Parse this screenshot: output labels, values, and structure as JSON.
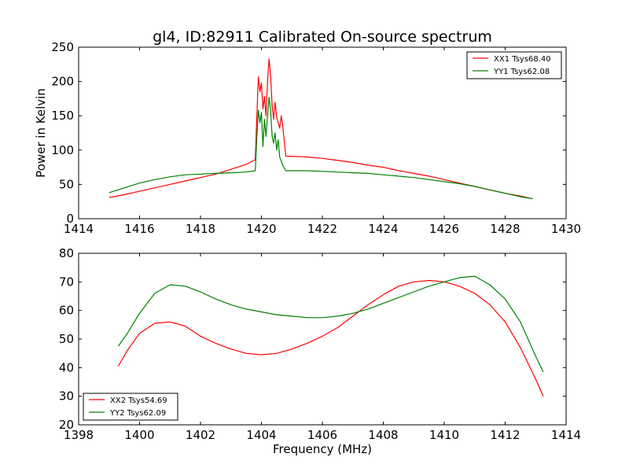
{
  "title": "gl4, ID:82911 Calibrated On-source spectrum",
  "chart_data": [
    {
      "type": "line",
      "ylabel": "Power in Kelvin",
      "xlim": [
        1414,
        1430
      ],
      "ylim": [
        0,
        250
      ],
      "xticks": [
        "1414",
        "1416",
        "1418",
        "1420",
        "1422",
        "1424",
        "1426",
        "1428",
        "1430"
      ],
      "yticks": [
        "0",
        "50",
        "100",
        "150",
        "200",
        "250"
      ],
      "legend_position": "upper-right",
      "series": [
        {
          "name": "XX1 Tsys68.40",
          "color": "#ff0000",
          "points": [
            [
              1415.0,
              31
            ],
            [
              1415.5,
              35
            ],
            [
              1416.0,
              40
            ],
            [
              1416.5,
              45
            ],
            [
              1417.0,
              50
            ],
            [
              1417.5,
              55
            ],
            [
              1418.0,
              60
            ],
            [
              1418.5,
              65
            ],
            [
              1419.0,
              72
            ],
            [
              1419.5,
              79
            ],
            [
              1419.8,
              86
            ],
            [
              1419.85,
              150
            ],
            [
              1419.9,
              207
            ],
            [
              1419.95,
              185
            ],
            [
              1420.0,
              198
            ],
            [
              1420.05,
              160
            ],
            [
              1420.1,
              178
            ],
            [
              1420.15,
              150
            ],
            [
              1420.2,
              200
            ],
            [
              1420.25,
              233
            ],
            [
              1420.3,
              210
            ],
            [
              1420.35,
              165
            ],
            [
              1420.4,
              145
            ],
            [
              1420.45,
              170
            ],
            [
              1420.5,
              148
            ],
            [
              1420.55,
              140
            ],
            [
              1420.6,
              132
            ],
            [
              1420.65,
              150
            ],
            [
              1420.7,
              135
            ],
            [
              1420.8,
              91
            ],
            [
              1421.0,
              91
            ],
            [
              1421.5,
              90
            ],
            [
              1422.0,
              88
            ],
            [
              1422.5,
              85
            ],
            [
              1423.0,
              82
            ],
            [
              1423.5,
              78
            ],
            [
              1424.0,
              75
            ],
            [
              1424.5,
              70
            ],
            [
              1425.0,
              66
            ],
            [
              1425.5,
              62
            ],
            [
              1426.0,
              57
            ],
            [
              1426.5,
              52
            ],
            [
              1427.0,
              47
            ],
            [
              1427.5,
              42
            ],
            [
              1428.0,
              37
            ],
            [
              1428.5,
              33
            ],
            [
              1428.9,
              29
            ]
          ]
        },
        {
          "name": "YY1 Tsys62.08",
          "color": "#008000",
          "points": [
            [
              1415.0,
              38
            ],
            [
              1415.5,
              45
            ],
            [
              1416.0,
              52
            ],
            [
              1416.5,
              57
            ],
            [
              1417.0,
              61
            ],
            [
              1417.5,
              64
            ],
            [
              1418.0,
              65
            ],
            [
              1418.5,
              66
            ],
            [
              1419.0,
              67
            ],
            [
              1419.5,
              68
            ],
            [
              1419.8,
              70
            ],
            [
              1419.85,
              120
            ],
            [
              1419.9,
              158
            ],
            [
              1419.95,
              140
            ],
            [
              1420.0,
              155
            ],
            [
              1420.05,
              105
            ],
            [
              1420.1,
              145
            ],
            [
              1420.15,
              120
            ],
            [
              1420.2,
              150
            ],
            [
              1420.25,
              177
            ],
            [
              1420.3,
              160
            ],
            [
              1420.35,
              120
            ],
            [
              1420.4,
              110
            ],
            [
              1420.45,
              125
            ],
            [
              1420.5,
              100
            ],
            [
              1420.55,
              115
            ],
            [
              1420.6,
              90
            ],
            [
              1420.7,
              78
            ],
            [
              1420.8,
              70
            ],
            [
              1421.0,
              70
            ],
            [
              1421.5,
              70
            ],
            [
              1422.0,
              69
            ],
            [
              1422.5,
              68
            ],
            [
              1423.0,
              67
            ],
            [
              1423.5,
              66
            ],
            [
              1424.0,
              64
            ],
            [
              1424.5,
              62
            ],
            [
              1425.0,
              60
            ],
            [
              1425.5,
              57
            ],
            [
              1426.0,
              54
            ],
            [
              1426.5,
              51
            ],
            [
              1427.0,
              47
            ],
            [
              1427.5,
              42
            ],
            [
              1428.0,
              37
            ],
            [
              1428.5,
              32
            ],
            [
              1428.9,
              29
            ]
          ]
        }
      ]
    },
    {
      "type": "line",
      "xlabel": "Frequency (MHz)",
      "xlim": [
        1398,
        1414
      ],
      "ylim": [
        20,
        80
      ],
      "xticks": [
        "1398",
        "1400",
        "1402",
        "1404",
        "1406",
        "1408",
        "1410",
        "1412",
        "1414"
      ],
      "yticks": [
        "20",
        "30",
        "40",
        "50",
        "60",
        "70",
        "80"
      ],
      "legend_position": "lower-left",
      "series": [
        {
          "name": "XX2 Tsys54.69",
          "color": "#ff0000",
          "points": [
            [
              1399.3,
              40.5
            ],
            [
              1399.6,
              46
            ],
            [
              1400.0,
              52
            ],
            [
              1400.5,
              55.5
            ],
            [
              1401.0,
              56
            ],
            [
              1401.5,
              54.5
            ],
            [
              1402.0,
              51
            ],
            [
              1402.5,
              48.5
            ],
            [
              1403.0,
              46.5
            ],
            [
              1403.5,
              45
            ],
            [
              1404.0,
              44.5
            ],
            [
              1404.5,
              45
            ],
            [
              1405.0,
              46.5
            ],
            [
              1405.5,
              48.5
            ],
            [
              1406.0,
              51
            ],
            [
              1406.5,
              54
            ],
            [
              1407.0,
              58
            ],
            [
              1407.5,
              62
            ],
            [
              1408.0,
              65.5
            ],
            [
              1408.5,
              68.5
            ],
            [
              1409.0,
              70
            ],
            [
              1409.5,
              70.5
            ],
            [
              1410.0,
              70
            ],
            [
              1410.5,
              68.5
            ],
            [
              1411.0,
              66
            ],
            [
              1411.5,
              62
            ],
            [
              1412.0,
              56
            ],
            [
              1412.5,
              47
            ],
            [
              1413.0,
              36
            ],
            [
              1413.25,
              30
            ]
          ]
        },
        {
          "name": "YY2 Tsys62.09",
          "color": "#008000",
          "points": [
            [
              1399.3,
              47.5
            ],
            [
              1399.6,
              52
            ],
            [
              1400.0,
              59
            ],
            [
              1400.5,
              66
            ],
            [
              1401.0,
              69
            ],
            [
              1401.5,
              68.5
            ],
            [
              1402.0,
              66.5
            ],
            [
              1402.5,
              64
            ],
            [
              1403.0,
              62
            ],
            [
              1403.5,
              60.5
            ],
            [
              1404.0,
              59.5
            ],
            [
              1404.5,
              58.5
            ],
            [
              1405.0,
              58
            ],
            [
              1405.5,
              57.5
            ],
            [
              1406.0,
              57.5
            ],
            [
              1406.5,
              58
            ],
            [
              1407.0,
              59
            ],
            [
              1407.5,
              60.5
            ],
            [
              1408.0,
              62.5
            ],
            [
              1408.5,
              64.5
            ],
            [
              1409.0,
              66.5
            ],
            [
              1409.5,
              68.5
            ],
            [
              1410.0,
              70
            ],
            [
              1410.5,
              71.5
            ],
            [
              1411.0,
              72
            ],
            [
              1411.5,
              69
            ],
            [
              1412.0,
              64
            ],
            [
              1412.5,
              56
            ],
            [
              1413.0,
              44
            ],
            [
              1413.25,
              38.5
            ]
          ]
        }
      ]
    }
  ]
}
